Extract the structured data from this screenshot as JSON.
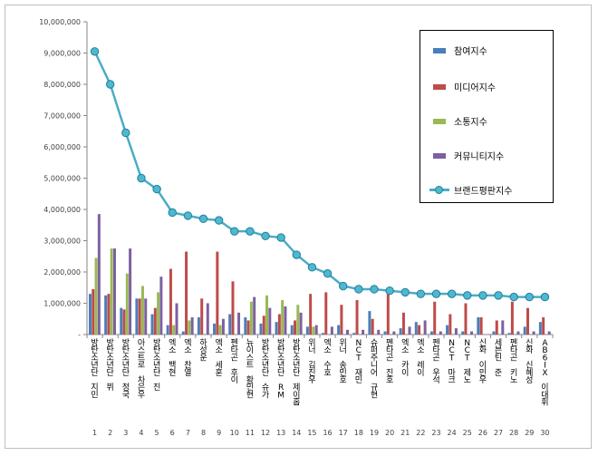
{
  "chart_data": {
    "type": "bar",
    "title": "",
    "xlabel": "",
    "ylabel": "",
    "ylim": [
      0,
      10000000
    ],
    "yticks": [
      "-",
      "1,000,000",
      "2,000,000",
      "3,000,000",
      "4,000,000",
      "5,000,000",
      "6,000,000",
      "7,000,000",
      "8,000,000",
      "9,000,000",
      "10,000,000"
    ],
    "grid": false,
    "legend_position": "top-right",
    "categories": [
      "방탄소년단 지민",
      "방탄소년단 뷔",
      "방탄소년단 정국",
      "아스트로 차은우",
      "방탄소년단 진",
      "엑소 백현",
      "엑소 찬열",
      "하성운",
      "엑소 세훈",
      "펜타곤 후이",
      "뉴이스트 황민현",
      "방탄소년단 슈가",
      "방탄소년단 RM",
      "방탄소년단 제이홉",
      "위너 김진우",
      "엑소 수호",
      "위너 송민호",
      "NCT 재민",
      "슈퍼주니어 규현",
      "펜타곤 진호",
      "엑소 카이",
      "엑소 레이",
      "펜타곤 우석",
      "NCT 마크",
      "NCT 제노",
      "신화 이민우",
      "세븐틴 준",
      "펜타곤 키노",
      "신화 신혜성",
      "AB6IX 이대휘"
    ],
    "rank_numbers": [
      "1",
      "2",
      "3",
      "4",
      "5",
      "6",
      "7",
      "8",
      "9",
      "10",
      "11",
      "12",
      "13",
      "14",
      "15",
      "16",
      "17",
      "18",
      "19",
      "20",
      "21",
      "22",
      "23",
      "24",
      "25",
      "26",
      "27",
      "28",
      "29",
      "30"
    ],
    "series": [
      {
        "name": "참여지수",
        "kind": "bar",
        "color": "#4a7ebb",
        "values": [
          1300000,
          1250000,
          850000,
          1150000,
          650000,
          300000,
          100000,
          550000,
          350000,
          650000,
          550000,
          350000,
          400000,
          300000,
          250000,
          50000,
          300000,
          50000,
          750000,
          100000,
          200000,
          400000,
          100000,
          300000,
          100000,
          550000,
          100000,
          50000,
          250000,
          400000
        ]
      },
      {
        "name": "미디어지수",
        "kind": "bar",
        "color": "#be4b48",
        "values": [
          1450000,
          1300000,
          800000,
          1150000,
          850000,
          2100000,
          2650000,
          1150000,
          2650000,
          1700000,
          450000,
          600000,
          650000,
          450000,
          1300000,
          1350000,
          950000,
          1100000,
          500000,
          1300000,
          700000,
          300000,
          1050000,
          650000,
          1000000,
          550000,
          450000,
          1050000,
          850000,
          550000
        ]
      },
      {
        "name": "소통지수",
        "kind": "bar",
        "color": "#98b954",
        "values": [
          2450000,
          2750000,
          1950000,
          1550000,
          1350000,
          300000,
          450000,
          0,
          300000,
          0,
          1050000,
          1250000,
          1100000,
          950000,
          250000,
          0,
          0,
          0,
          0,
          0,
          0,
          0,
          0,
          0,
          0,
          0,
          0,
          0,
          0,
          0
        ]
      },
      {
        "name": "커뮤니티지수",
        "kind": "bar",
        "color": "#7d60a0",
        "values": [
          3850000,
          2750000,
          2750000,
          1150000,
          1850000,
          1000000,
          550000,
          1000000,
          500000,
          700000,
          1200000,
          850000,
          900000,
          700000,
          300000,
          250000,
          150000,
          150000,
          150000,
          100000,
          250000,
          450000,
          100000,
          200000,
          100000,
          0,
          450000,
          100000,
          100000,
          100000
        ]
      },
      {
        "name": "브랜드평판지수",
        "kind": "line",
        "color": "#4bacc6",
        "values": [
          9050000,
          8000000,
          6450000,
          5000000,
          4650000,
          3900000,
          3800000,
          3700000,
          3650000,
          3300000,
          3300000,
          3150000,
          3100000,
          2550000,
          2150000,
          1950000,
          1550000,
          1450000,
          1450000,
          1400000,
          1350000,
          1300000,
          1300000,
          1300000,
          1250000,
          1250000,
          1250000,
          1200000,
          1200000,
          1200000
        ]
      }
    ]
  }
}
